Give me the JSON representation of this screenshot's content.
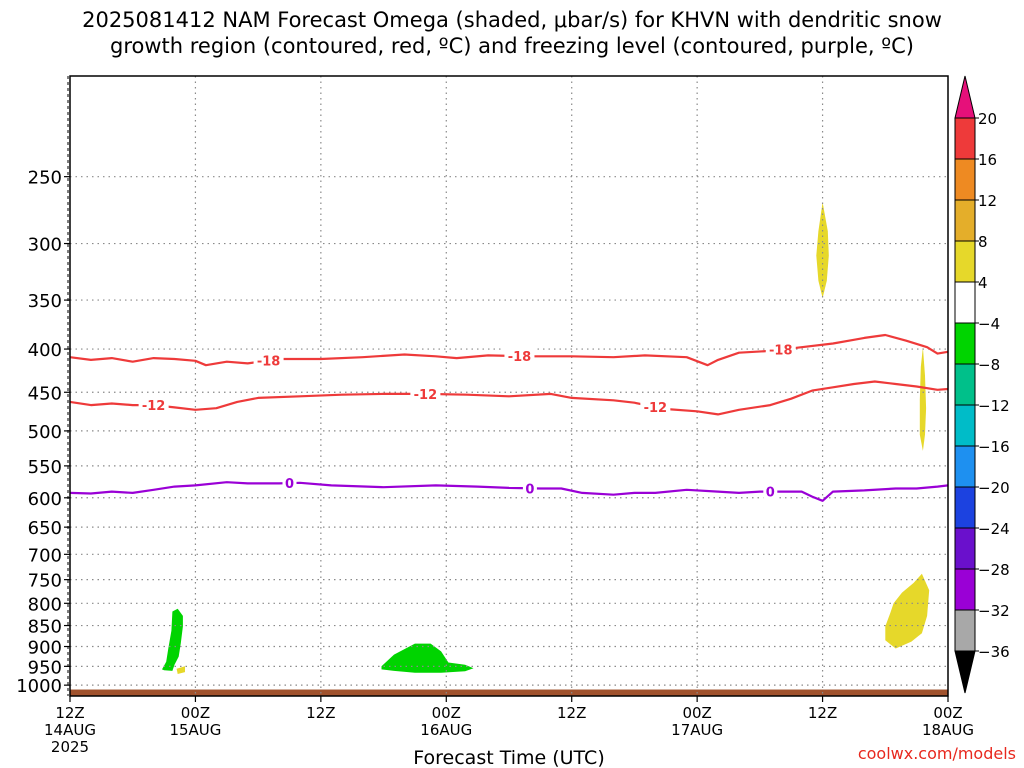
{
  "title_line1": "2025081412 NAM Forecast Omega (shaded, μbar/s) for KHVN with dendritic snow",
  "title_line2": "growth region (contoured, red, ºC) and freezing level (contoured, purple, ºC)",
  "credit": "coolwx.com/models",
  "chart_data": {
    "type": "time-height cross-section",
    "xlabel": "Forecast Time (UTC)",
    "x_range_hours": [
      0,
      84
    ],
    "x_ticks": [
      {
        "h": 0,
        "l1": "12Z",
        "l2": "14AUG",
        "l3": "2025"
      },
      {
        "h": 12,
        "l1": "00Z",
        "l2": "15AUG",
        "l3": ""
      },
      {
        "h": 24,
        "l1": "12Z",
        "l2": "",
        "l3": ""
      },
      {
        "h": 36,
        "l1": "00Z",
        "l2": "16AUG",
        "l3": ""
      },
      {
        "h": 48,
        "l1": "12Z",
        "l2": "",
        "l3": ""
      },
      {
        "h": 60,
        "l1": "00Z",
        "l2": "17AUG",
        "l3": ""
      },
      {
        "h": 72,
        "l1": "12Z",
        "l2": "",
        "l3": ""
      },
      {
        "h": 84,
        "l1": "00Z",
        "l2": "18AUG",
        "l3": ""
      }
    ],
    "y_axis": {
      "scale": "log",
      "range_hPa": [
        1030,
        190
      ],
      "ticks": [
        250,
        300,
        350,
        400,
        450,
        500,
        550,
        600,
        650,
        700,
        750,
        800,
        850,
        900,
        950,
        1000
      ]
    },
    "ground_level_hPa": 1012,
    "contours": [
      {
        "label": "-18",
        "color": "#ee3a3a",
        "points": [
          [
            0,
            409
          ],
          [
            2,
            412
          ],
          [
            4,
            410
          ],
          [
            6,
            414
          ],
          [
            8,
            410
          ],
          [
            10,
            411
          ],
          [
            12,
            413
          ],
          [
            13,
            418
          ],
          [
            15,
            414
          ],
          [
            17,
            416
          ],
          [
            20,
            411
          ],
          [
            24,
            411
          ],
          [
            28,
            409
          ],
          [
            32,
            406
          ],
          [
            35,
            408
          ],
          [
            37,
            410
          ],
          [
            40,
            407
          ],
          [
            44,
            408
          ],
          [
            48,
            408
          ],
          [
            52,
            409
          ],
          [
            55,
            407
          ],
          [
            59,
            409
          ],
          [
            61,
            418
          ],
          [
            62,
            412
          ],
          [
            64,
            404
          ],
          [
            67,
            402
          ],
          [
            70,
            398
          ],
          [
            73,
            394
          ],
          [
            75,
            390
          ],
          [
            76,
            388
          ],
          [
            78,
            385
          ],
          [
            80,
            391
          ],
          [
            82,
            398
          ],
          [
            83,
            405
          ],
          [
            84,
            403
          ]
        ],
        "label_positions": [
          19,
          43,
          68
        ]
      },
      {
        "label": "-12",
        "color": "#ee3a3a",
        "points": [
          [
            0,
            462
          ],
          [
            2,
            466
          ],
          [
            4,
            464
          ],
          [
            6,
            466
          ],
          [
            8,
            466
          ],
          [
            10,
            469
          ],
          [
            12,
            472
          ],
          [
            14,
            470
          ],
          [
            16,
            462
          ],
          [
            18,
            457
          ],
          [
            22,
            455
          ],
          [
            26,
            453
          ],
          [
            30,
            452
          ],
          [
            34,
            452
          ],
          [
            38,
            453
          ],
          [
            42,
            455
          ],
          [
            46,
            452
          ],
          [
            48,
            457
          ],
          [
            52,
            460
          ],
          [
            54,
            463
          ],
          [
            57,
            471
          ],
          [
            60,
            474
          ],
          [
            62,
            478
          ],
          [
            64,
            472
          ],
          [
            67,
            466
          ],
          [
            69,
            458
          ],
          [
            71,
            448
          ],
          [
            73,
            444
          ],
          [
            75,
            440
          ],
          [
            77,
            437
          ],
          [
            79,
            440
          ],
          [
            81,
            443
          ],
          [
            83,
            447
          ],
          [
            84,
            446
          ]
        ],
        "label_positions": [
          8,
          34,
          56
        ]
      },
      {
        "label": "0",
        "color": "#9a00d6",
        "points": [
          [
            0,
            592
          ],
          [
            2,
            593
          ],
          [
            4,
            590
          ],
          [
            6,
            592
          ],
          [
            8,
            587
          ],
          [
            10,
            582
          ],
          [
            12,
            580
          ],
          [
            15,
            575
          ],
          [
            17,
            577
          ],
          [
            20,
            577
          ],
          [
            22,
            576
          ],
          [
            25,
            580
          ],
          [
            30,
            583
          ],
          [
            35,
            580
          ],
          [
            39,
            582
          ],
          [
            42,
            584
          ],
          [
            45,
            585
          ],
          [
            47,
            585
          ],
          [
            49,
            592
          ],
          [
            52,
            595
          ],
          [
            54,
            592
          ],
          [
            56,
            592
          ],
          [
            59,
            587
          ],
          [
            62,
            590
          ],
          [
            64,
            592
          ],
          [
            66,
            590
          ],
          [
            68,
            590
          ],
          [
            70,
            590
          ],
          [
            71,
            598
          ],
          [
            72,
            605
          ],
          [
            73,
            590
          ],
          [
            76,
            588
          ],
          [
            79,
            585
          ],
          [
            81,
            585
          ],
          [
            83,
            582
          ],
          [
            84,
            580
          ]
        ],
        "label_positions": [
          21,
          44,
          67
        ]
      }
    ],
    "shaded_regions": [
      {
        "color": "#00d400",
        "level": "-8 to -4",
        "points": [
          [
            9.0,
            960
          ],
          [
            9.8,
            962
          ],
          [
            10.0,
            946
          ],
          [
            10.4,
            925
          ],
          [
            10.6,
            892
          ],
          [
            10.8,
            852
          ],
          [
            10.8,
            828
          ],
          [
            10.3,
            812
          ],
          [
            9.8,
            818
          ],
          [
            9.7,
            862
          ],
          [
            9.4,
            905
          ],
          [
            9.2,
            938
          ],
          [
            8.8,
            958
          ]
        ]
      },
      {
        "color": "#e6d82a",
        "level": "4 to 8",
        "points": [
          [
            10.2,
            956
          ],
          [
            11.0,
            950
          ],
          [
            11.0,
            965
          ],
          [
            10.3,
            970
          ]
        ]
      },
      {
        "color": "#00d400",
        "level": "-8 to -4",
        "points": [
          [
            29.8,
            950
          ],
          [
            31.0,
            920
          ],
          [
            33.0,
            893
          ],
          [
            34.5,
            893
          ],
          [
            35.5,
            912
          ],
          [
            36.2,
            940
          ],
          [
            37.8,
            946
          ],
          [
            38.6,
            955
          ],
          [
            37.8,
            963
          ],
          [
            35.5,
            967
          ],
          [
            33.0,
            967
          ],
          [
            31.0,
            962
          ],
          [
            29.8,
            958
          ]
        ]
      },
      {
        "color": "#e6d82a",
        "level": "4 to 8",
        "points": [
          [
            72.0,
            268
          ],
          [
            72.5,
            290
          ],
          [
            72.6,
            310
          ],
          [
            72.4,
            332
          ],
          [
            72.0,
            348
          ],
          [
            71.6,
            332
          ],
          [
            71.4,
            310
          ],
          [
            71.6,
            290
          ]
        ]
      },
      {
        "color": "#e6d82a",
        "level": "4 to 8",
        "points": [
          [
            81.6,
            398
          ],
          [
            81.8,
            430
          ],
          [
            81.9,
            470
          ],
          [
            81.8,
            505
          ],
          [
            81.6,
            528
          ],
          [
            81.3,
            505
          ],
          [
            81.3,
            460
          ],
          [
            81.4,
            420
          ]
        ]
      },
      {
        "color": "#e6d82a",
        "level": "4 to 8",
        "points": [
          [
            78.0,
            885
          ],
          [
            79.0,
            905
          ],
          [
            80.5,
            888
          ],
          [
            81.5,
            868
          ],
          [
            82.0,
            828
          ],
          [
            82.2,
            772
          ],
          [
            81.5,
            738
          ],
          [
            80.7,
            757
          ],
          [
            79.6,
            777
          ],
          [
            78.8,
            800
          ],
          [
            78.5,
            820
          ],
          [
            78.0,
            852
          ]
        ]
      }
    ],
    "colorbar": {
      "levels": [
        "20",
        "16",
        "12",
        "8",
        "4",
        "−4",
        "−8",
        "−12",
        "−16",
        "−20",
        "−24",
        "−28",
        "−32",
        "−36"
      ],
      "colors": [
        "#ee3a3a",
        "#ee8a22",
        "#e4ae2a",
        "#e6d82a",
        "#ffffff",
        "#00d400",
        "#00c08a",
        "#00bcc8",
        "#1e90f0",
        "#1c42e0",
        "#6a10cc",
        "#9a00d6",
        "#a8a8a8"
      ],
      "top_arrow_color": "#e6107a",
      "bottom_arrow_color": "#000000"
    },
    "grid": true
  }
}
